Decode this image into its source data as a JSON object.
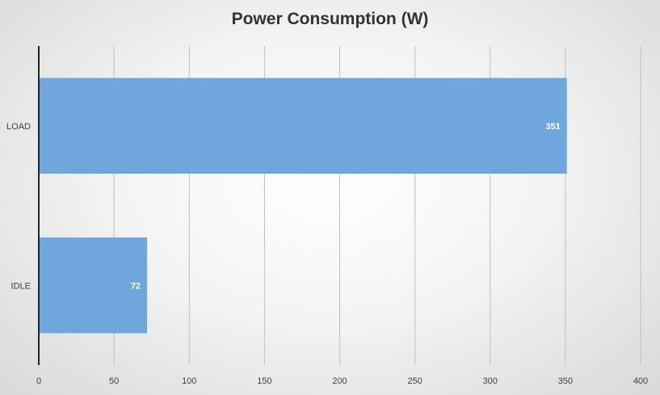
{
  "chart_data": {
    "type": "bar",
    "orientation": "horizontal",
    "title": "Power Consumption (W)",
    "xlabel": "",
    "ylabel": "",
    "categories": [
      "LOAD",
      "IDLE"
    ],
    "values": [
      351,
      72
    ],
    "data_labels": [
      "351",
      "72"
    ],
    "xlim": [
      0,
      400
    ],
    "x_ticks": [
      0,
      50,
      100,
      150,
      200,
      250,
      300,
      350,
      400
    ],
    "x_tick_labels": [
      "0",
      "50",
      "100",
      "150",
      "200",
      "250",
      "300",
      "350",
      "400"
    ],
    "grid": "vertical",
    "legend": "none",
    "colors": {
      "bar": "#6fa6db",
      "grid": "#bfbfbf",
      "axis": "#262626",
      "title": "#333333"
    }
  }
}
